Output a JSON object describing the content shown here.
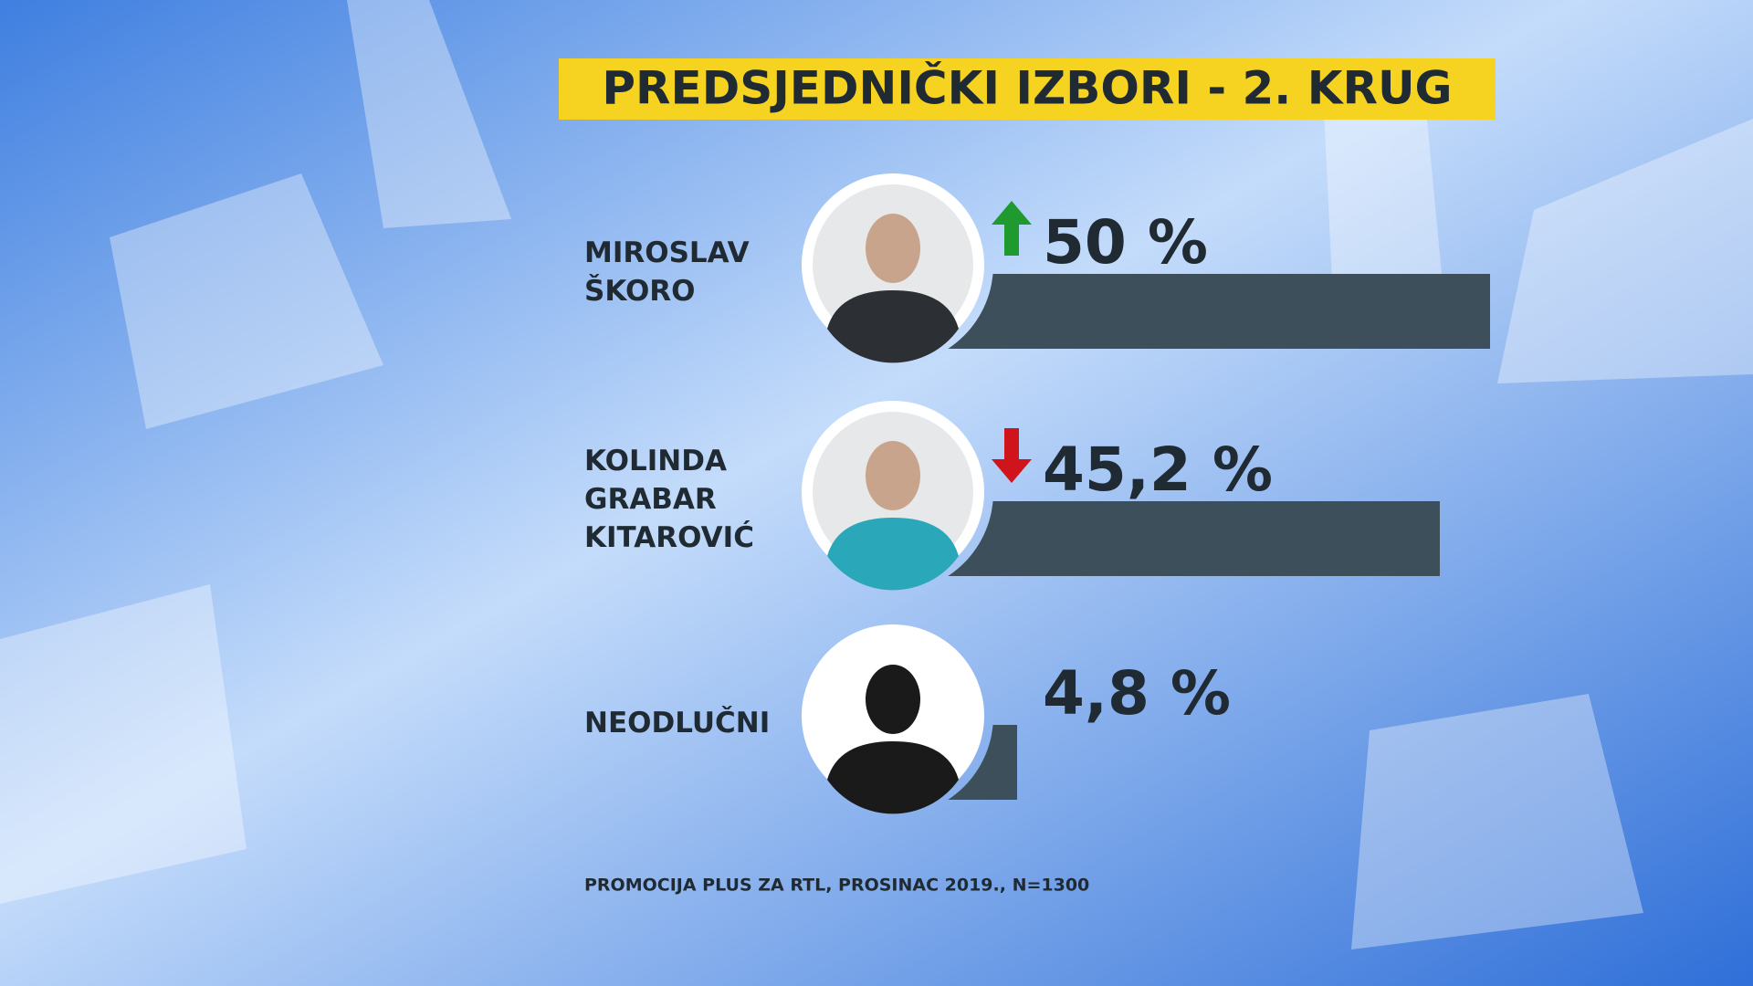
{
  "chart_data": {
    "type": "bar",
    "title": "PREDSJEDNIČKI IZBORI - 2. KRUG",
    "categories": [
      "MIROSLAV ŠKORO",
      "KOLINDA GRABAR KITAROVIĆ",
      "NEODLUČNI"
    ],
    "values": [
      50,
      45.2,
      4.8
    ],
    "value_labels": [
      "50 %",
      "45,2 %",
      "4,8 %"
    ],
    "trend": [
      "up",
      "down",
      null
    ],
    "color": "#3d4f5a",
    "xlim": [
      0,
      50
    ],
    "source": "PROMOCIJA PLUS ZA RTL, PROSINAC 2019., N=1300"
  }
}
